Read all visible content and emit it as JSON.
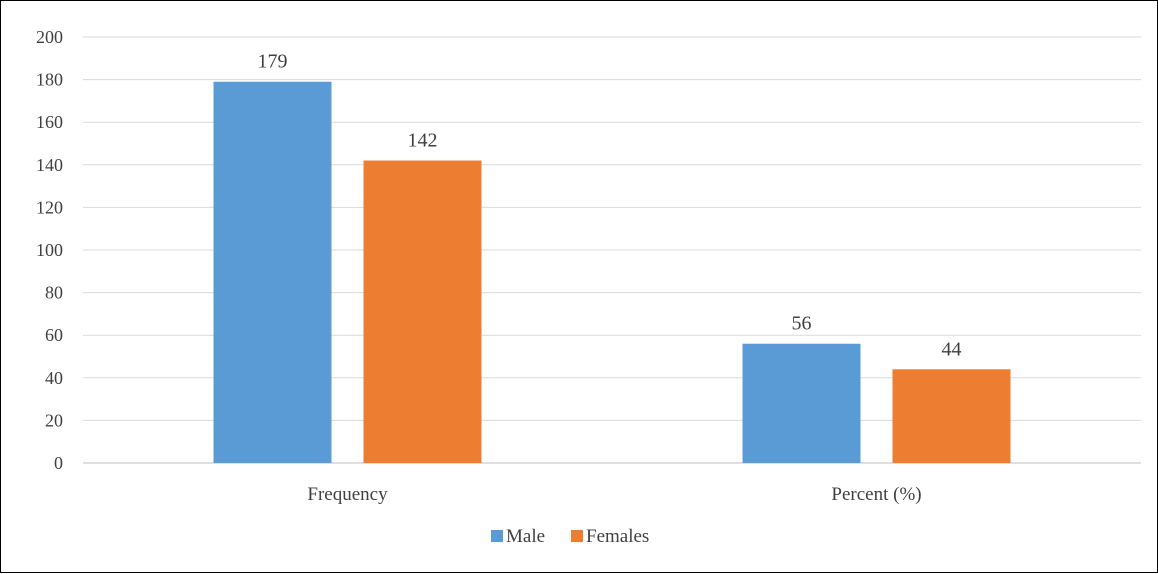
{
  "chart_data": {
    "type": "bar",
    "categories": [
      "Frequency",
      "Percent (%)"
    ],
    "series": [
      {
        "name": "Male",
        "values": [
          179,
          56
        ],
        "color": "#5B9BD5"
      },
      {
        "name": "Females",
        "values": [
          142,
          44
        ],
        "color": "#ED7D31"
      }
    ],
    "title": "",
    "xlabel": "",
    "ylabel": "",
    "ylim": [
      0,
      200
    ],
    "yticks": [
      0,
      20,
      40,
      60,
      80,
      100,
      120,
      140,
      160,
      180,
      200
    ],
    "grid": true,
    "legend": "bottom",
    "data_labels": true
  }
}
